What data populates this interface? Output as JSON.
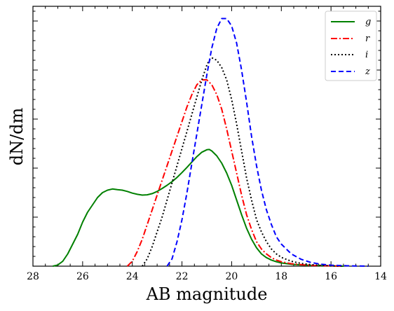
{
  "chart_data": {
    "type": "line",
    "xlabel": "AB magnitude",
    "ylabel": "dN/dm",
    "xlim": [
      28,
      14
    ],
    "x_ticks": [
      "28",
      "26",
      "24",
      "22",
      "20",
      "18",
      "16",
      "14"
    ],
    "x_tick_values": [
      28,
      26,
      24,
      22,
      20,
      18,
      16,
      14
    ],
    "ylim": [
      0,
      1.06
    ],
    "y_tick_labels": "none",
    "legend_position": "top-right",
    "series": [
      {
        "name": "g",
        "color": "#008000",
        "style": "solid",
        "points": [
          [
            27.2,
            0.0
          ],
          [
            27.0,
            0.005
          ],
          [
            26.8,
            0.02
          ],
          [
            26.6,
            0.05
          ],
          [
            26.4,
            0.09
          ],
          [
            26.2,
            0.13
          ],
          [
            26.0,
            0.18
          ],
          [
            25.8,
            0.22
          ],
          [
            25.6,
            0.25
          ],
          [
            25.4,
            0.28
          ],
          [
            25.2,
            0.3
          ],
          [
            25.0,
            0.31
          ],
          [
            24.8,
            0.315
          ],
          [
            24.6,
            0.312
          ],
          [
            24.4,
            0.31
          ],
          [
            24.2,
            0.305
          ],
          [
            24.0,
            0.298
          ],
          [
            23.8,
            0.293
          ],
          [
            23.6,
            0.29
          ],
          [
            23.4,
            0.291
          ],
          [
            23.2,
            0.296
          ],
          [
            23.0,
            0.305
          ],
          [
            22.8,
            0.317
          ],
          [
            22.6,
            0.33
          ],
          [
            22.4,
            0.345
          ],
          [
            22.2,
            0.362
          ],
          [
            22.0,
            0.382
          ],
          [
            21.8,
            0.403
          ],
          [
            21.6,
            0.425
          ],
          [
            21.4,
            0.447
          ],
          [
            21.2,
            0.465
          ],
          [
            21.0,
            0.475
          ],
          [
            20.9,
            0.476
          ],
          [
            20.8,
            0.47
          ],
          [
            20.6,
            0.45
          ],
          [
            20.4,
            0.42
          ],
          [
            20.2,
            0.38
          ],
          [
            20.0,
            0.33
          ],
          [
            19.8,
            0.27
          ],
          [
            19.6,
            0.21
          ],
          [
            19.4,
            0.155
          ],
          [
            19.2,
            0.11
          ],
          [
            19.0,
            0.075
          ],
          [
            18.8,
            0.05
          ],
          [
            18.6,
            0.035
          ],
          [
            18.4,
            0.025
          ],
          [
            18.2,
            0.018
          ],
          [
            18.0,
            0.013
          ],
          [
            17.6,
            0.008
          ],
          [
            17.2,
            0.005
          ],
          [
            16.8,
            0.003
          ],
          [
            16.4,
            0.002
          ],
          [
            16.0,
            0.001
          ],
          [
            15.5,
            0.0
          ]
        ]
      },
      {
        "name": "r",
        "color": "#ff0000",
        "style": "dashdot",
        "points": [
          [
            24.2,
            0.0
          ],
          [
            24.0,
            0.02
          ],
          [
            23.8,
            0.06
          ],
          [
            23.6,
            0.11
          ],
          [
            23.4,
            0.17
          ],
          [
            23.2,
            0.23
          ],
          [
            23.0,
            0.29
          ],
          [
            22.8,
            0.35
          ],
          [
            22.6,
            0.41
          ],
          [
            22.4,
            0.47
          ],
          [
            22.2,
            0.53
          ],
          [
            22.0,
            0.59
          ],
          [
            21.8,
            0.65
          ],
          [
            21.6,
            0.7
          ],
          [
            21.4,
            0.74
          ],
          [
            21.2,
            0.76
          ],
          [
            21.0,
            0.76
          ],
          [
            20.8,
            0.74
          ],
          [
            20.6,
            0.7
          ],
          [
            20.4,
            0.64
          ],
          [
            20.2,
            0.56
          ],
          [
            20.0,
            0.47
          ],
          [
            19.8,
            0.38
          ],
          [
            19.6,
            0.29
          ],
          [
            19.4,
            0.21
          ],
          [
            19.2,
            0.15
          ],
          [
            19.0,
            0.1
          ],
          [
            18.8,
            0.07
          ],
          [
            18.6,
            0.05
          ],
          [
            18.4,
            0.035
          ],
          [
            18.2,
            0.025
          ],
          [
            18.0,
            0.018
          ],
          [
            17.6,
            0.01
          ],
          [
            17.2,
            0.006
          ],
          [
            16.8,
            0.003
          ],
          [
            16.4,
            0.002
          ],
          [
            15.5,
            0.0
          ]
        ]
      },
      {
        "name": "i",
        "color": "#000000",
        "style": "dotted",
        "points": [
          [
            23.6,
            0.0
          ],
          [
            23.4,
            0.03
          ],
          [
            23.2,
            0.08
          ],
          [
            23.0,
            0.14
          ],
          [
            22.8,
            0.2
          ],
          [
            22.6,
            0.27
          ],
          [
            22.4,
            0.34
          ],
          [
            22.2,
            0.41
          ],
          [
            22.0,
            0.48
          ],
          [
            21.8,
            0.55
          ],
          [
            21.6,
            0.62
          ],
          [
            21.4,
            0.69
          ],
          [
            21.2,
            0.76
          ],
          [
            21.0,
            0.82
          ],
          [
            20.9,
            0.84
          ],
          [
            20.8,
            0.85
          ],
          [
            20.6,
            0.84
          ],
          [
            20.4,
            0.81
          ],
          [
            20.2,
            0.76
          ],
          [
            20.0,
            0.68
          ],
          [
            19.8,
            0.58
          ],
          [
            19.6,
            0.47
          ],
          [
            19.4,
            0.36
          ],
          [
            19.2,
            0.27
          ],
          [
            19.0,
            0.19
          ],
          [
            18.8,
            0.14
          ],
          [
            18.6,
            0.1
          ],
          [
            18.4,
            0.07
          ],
          [
            18.2,
            0.05
          ],
          [
            18.0,
            0.036
          ],
          [
            17.6,
            0.02
          ],
          [
            17.2,
            0.011
          ],
          [
            16.8,
            0.006
          ],
          [
            16.4,
            0.003
          ],
          [
            15.5,
            0.0
          ]
        ]
      },
      {
        "name": "z",
        "color": "#0000ff",
        "style": "dashed",
        "points": [
          [
            22.6,
            0.0
          ],
          [
            22.4,
            0.03
          ],
          [
            22.2,
            0.1
          ],
          [
            22.0,
            0.19
          ],
          [
            21.8,
            0.3
          ],
          [
            21.6,
            0.42
          ],
          [
            21.4,
            0.54
          ],
          [
            21.2,
            0.66
          ],
          [
            21.0,
            0.78
          ],
          [
            20.8,
            0.89
          ],
          [
            20.6,
            0.97
          ],
          [
            20.4,
            1.01
          ],
          [
            20.2,
            1.01
          ],
          [
            20.0,
            0.98
          ],
          [
            19.8,
            0.91
          ],
          [
            19.6,
            0.8
          ],
          [
            19.4,
            0.67
          ],
          [
            19.2,
            0.53
          ],
          [
            19.0,
            0.41
          ],
          [
            18.8,
            0.31
          ],
          [
            18.6,
            0.23
          ],
          [
            18.4,
            0.17
          ],
          [
            18.2,
            0.12
          ],
          [
            18.0,
            0.09
          ],
          [
            17.6,
            0.05
          ],
          [
            17.2,
            0.028
          ],
          [
            16.8,
            0.015
          ],
          [
            16.4,
            0.008
          ],
          [
            16.0,
            0.004
          ],
          [
            15.2,
            0.001
          ],
          [
            14.5,
            0.0
          ]
        ]
      }
    ]
  }
}
